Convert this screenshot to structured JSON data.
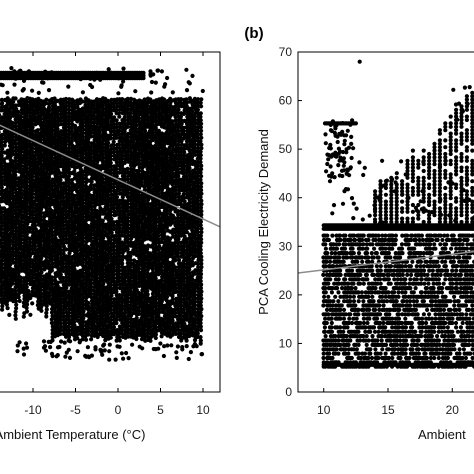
{
  "chart_data": [
    {
      "type": "scatter",
      "panel_label": "",
      "xlabel": "Ambient Temperature (°C)",
      "ylabel": "",
      "xlim": [
        -14,
        12
      ],
      "ylim": [
        0,
        70
      ],
      "xticks": [
        -10,
        -5,
        0,
        5,
        10
      ],
      "xtick_labels": [
        "-10",
        "-5",
        "0",
        "5",
        "10"
      ],
      "grid": false,
      "trend_line": {
        "x": [
          -14,
          12
        ],
        "y": [
          55,
          34
        ]
      },
      "data_extent": {
        "x": [
          -14,
          10
        ],
        "y": [
          7,
          66
        ]
      },
      "marker_color": "#000000",
      "trend_color": "#8c8c8c"
    },
    {
      "type": "scatter",
      "panel_label": "(b)",
      "xlabel": "Ambient",
      "ylabel": "PCA Cooling Electricity Demand",
      "xlim": [
        8,
        22
      ],
      "ylim": [
        0,
        70
      ],
      "xticks": [
        10,
        15,
        20
      ],
      "xtick_labels": [
        "10",
        "15",
        "20"
      ],
      "yticks": [
        0,
        10,
        20,
        30,
        40,
        50,
        60,
        70
      ],
      "ytick_labels": [
        "0",
        "10",
        "20",
        "30",
        "40",
        "50",
        "60",
        "70"
      ],
      "grid": false,
      "trend_line": {
        "x": [
          8,
          22
        ],
        "y": [
          24.5,
          29
        ]
      },
      "data_extent": {
        "x": [
          10,
          22
        ],
        "y": [
          5,
          68
        ]
      },
      "marker_color": "#000000",
      "trend_color": "#8c8c8c"
    }
  ]
}
